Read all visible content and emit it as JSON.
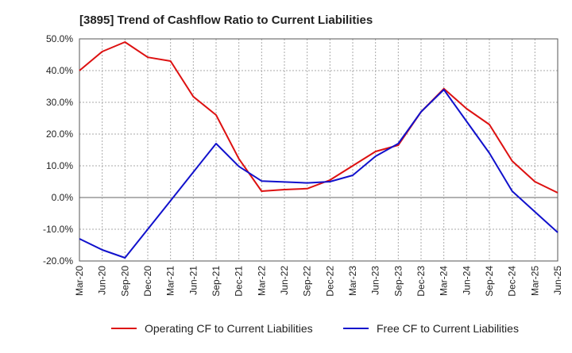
{
  "chart_data": {
    "type": "line",
    "title": "[3895]  Trend of Cashflow Ratio to Current Liabilities",
    "xlabel": "",
    "ylabel": "",
    "x": [
      "Mar-20",
      "Jun-20",
      "Sep-20",
      "Dec-20",
      "Mar-21",
      "Jun-21",
      "Sep-21",
      "Dec-21",
      "Mar-22",
      "Jun-22",
      "Sep-22",
      "Dec-22",
      "Mar-23",
      "Jun-23",
      "Sep-23",
      "Dec-23",
      "Mar-24",
      "Jun-24",
      "Sep-24",
      "Dec-24",
      "Mar-25",
      "Jun-25"
    ],
    "ylim": [
      -20,
      50
    ],
    "yticks": [
      50,
      40,
      30,
      20,
      10,
      0,
      -10,
      -20
    ],
    "ytick_labels": [
      "50.0%",
      "40.0%",
      "30.0%",
      "20.0%",
      "10.0%",
      "0.0%",
      "-10.0%",
      "-20.0%"
    ],
    "grid": true,
    "legend_position": "bottom",
    "series": [
      {
        "name": "Operating CF to Current Liabilities",
        "color": "#dd1111",
        "values": [
          40.0,
          46.0,
          49.0,
          44.2,
          43.0,
          31.8,
          26.0,
          12.2,
          2.0,
          2.5,
          2.8,
          5.5,
          10.0,
          14.5,
          16.5,
          27.0,
          34.3,
          28.0,
          23.0,
          11.5,
          5.0,
          1.5
        ]
      },
      {
        "name": "Free CF to Current Liabilities",
        "color": "#1111cc",
        "values": [
          -13.0,
          -16.5,
          -19.0,
          -10.0,
          -1.0,
          8.0,
          17.0,
          9.8,
          5.2,
          4.9,
          4.6,
          5.0,
          7.0,
          13.0,
          17.0,
          27.0,
          34.0,
          24.0,
          14.0,
          2.0,
          -4.5,
          -11.0
        ]
      }
    ],
    "series_points": [
      22,
      22
    ]
  }
}
